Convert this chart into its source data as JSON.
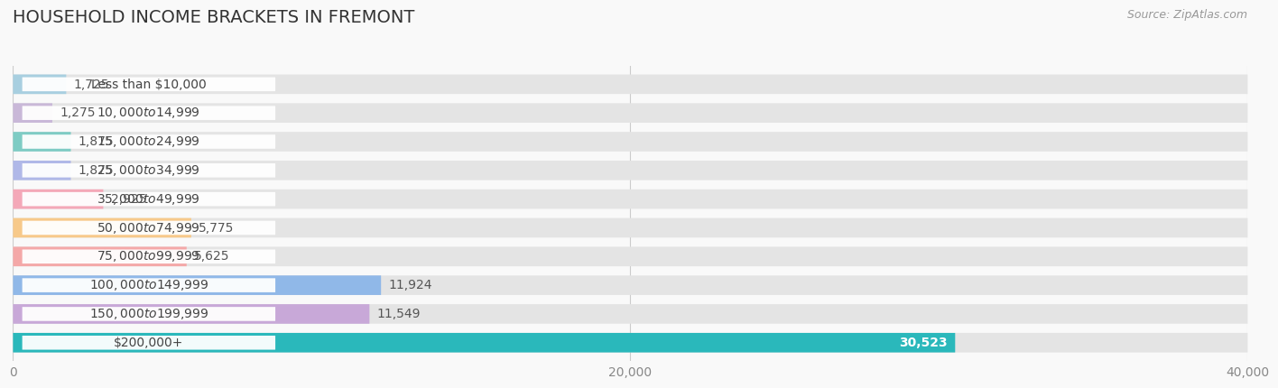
{
  "title": "HOUSEHOLD INCOME BRACKETS IN FREMONT",
  "source": "Source: ZipAtlas.com",
  "categories": [
    "Less than $10,000",
    "$10,000 to $14,999",
    "$15,000 to $24,999",
    "$25,000 to $34,999",
    "$35,000 to $49,999",
    "$50,000 to $74,999",
    "$75,000 to $99,999",
    "$100,000 to $149,999",
    "$150,000 to $199,999",
    "$200,000+"
  ],
  "values": [
    1725,
    1275,
    1875,
    1875,
    2925,
    5775,
    5625,
    11924,
    11549,
    30523
  ],
  "bar_colors": [
    "#a8cfe0",
    "#c9b8d8",
    "#7eccc4",
    "#b0b8e8",
    "#f4a8b8",
    "#f7c98a",
    "#f4a8a8",
    "#90b8e8",
    "#c8a8d8",
    "#2ab8bb"
  ],
  "background_color": "#f2f2f2",
  "bar_bg_color": "#e4e4e4",
  "xlim": [
    0,
    40000
  ],
  "xticks": [
    0,
    20000,
    40000
  ],
  "xticklabels": [
    "0",
    "20,000",
    "40,000"
  ],
  "title_fontsize": 14,
  "label_fontsize": 10,
  "value_fontsize": 10,
  "bar_height": 0.68,
  "figure_bg": "#f9f9f9"
}
